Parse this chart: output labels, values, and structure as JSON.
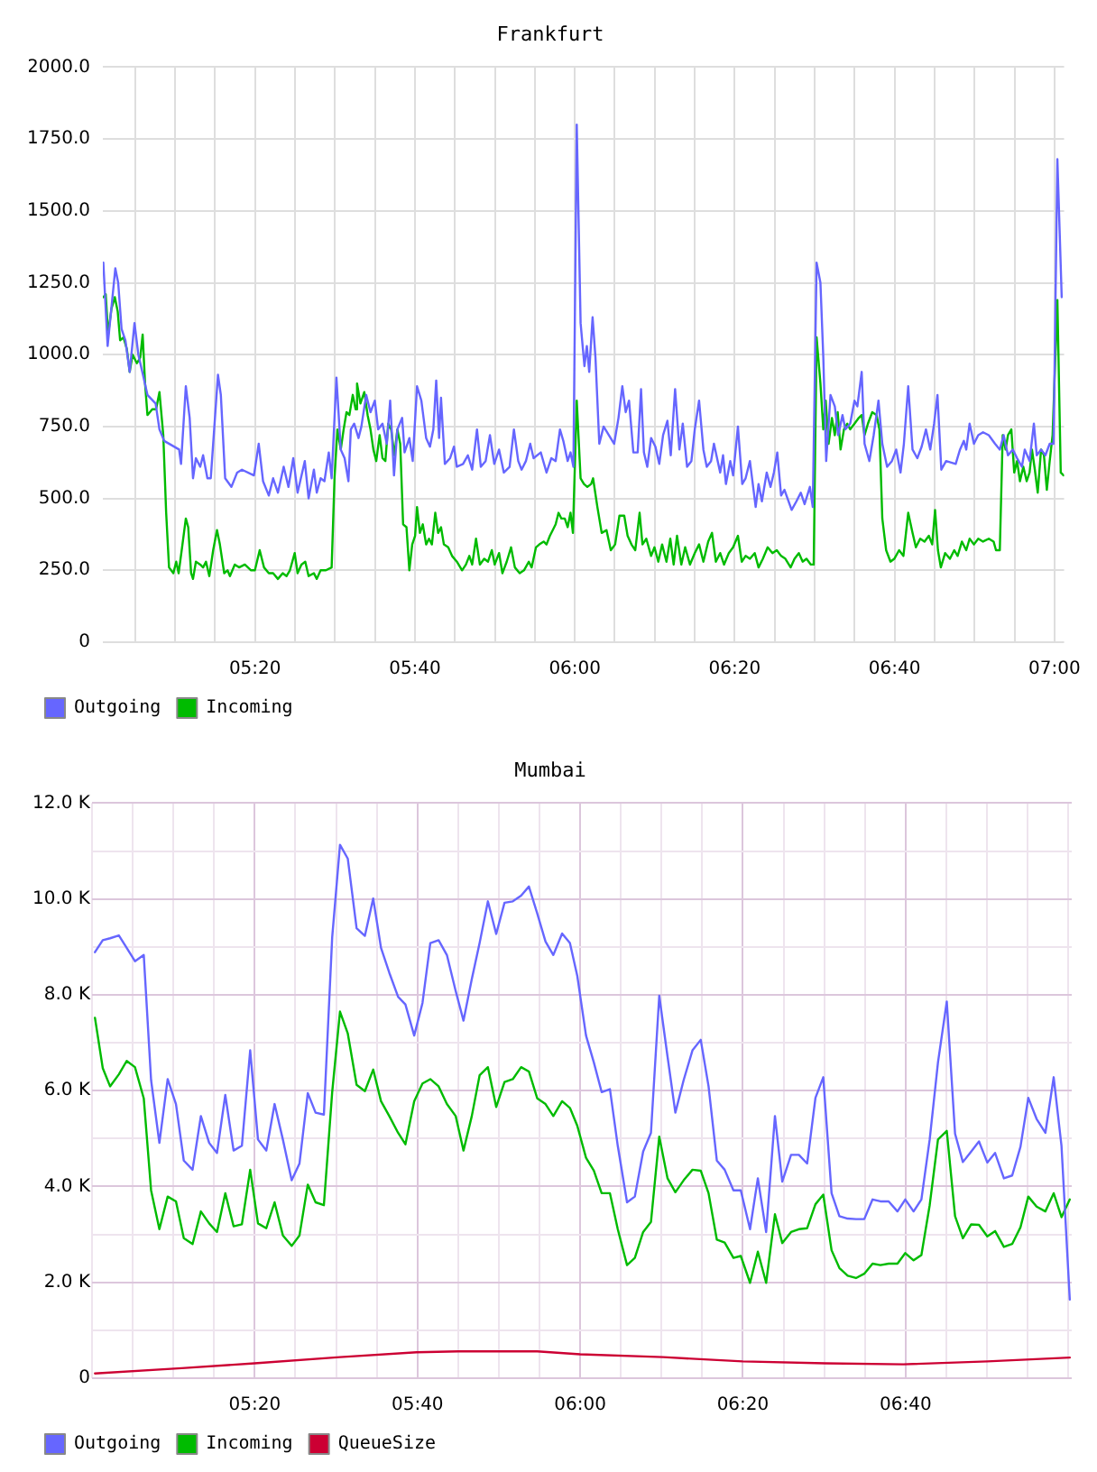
{
  "chart_data": [
    {
      "type": "line",
      "title": "Frankfurt",
      "xlim": [
        5.016,
        7.02
      ],
      "xticks": [
        {
          "value": 5.0833,
          "label": null
        },
        {
          "value": 5.1667,
          "label": null
        },
        {
          "value": 5.25,
          "label": null
        },
        {
          "value": 5.3333,
          "label": "05:20"
        },
        {
          "value": 5.4167,
          "label": null
        },
        {
          "value": 5.5,
          "label": null
        },
        {
          "value": 5.5833,
          "label": null
        },
        {
          "value": 5.6667,
          "label": "05:40"
        },
        {
          "value": 5.75,
          "label": null
        },
        {
          "value": 5.8333,
          "label": null
        },
        {
          "value": 5.9167,
          "label": null
        },
        {
          "value": 6,
          "label": "06:00"
        },
        {
          "value": 6.0833,
          "label": null
        },
        {
          "value": 6.1667,
          "label": null
        },
        {
          "value": 6.25,
          "label": null
        },
        {
          "value": 6.3333,
          "label": "06:20"
        },
        {
          "value": 6.4167,
          "label": null
        },
        {
          "value": 6.5,
          "label": null
        },
        {
          "value": 6.5833,
          "label": null
        },
        {
          "value": 6.6667,
          "label": "06:40"
        },
        {
          "value": 6.75,
          "label": null
        },
        {
          "value": 6.8333,
          "label": null
        },
        {
          "value": 6.9167,
          "label": null
        },
        {
          "value": 7,
          "label": "07:00"
        }
      ],
      "ylim": [
        0,
        2000
      ],
      "yticks": [
        0,
        {
          "value": 250,
          "label": "250.0"
        },
        {
          "value": 500,
          "label": "500.0"
        },
        {
          "value": 750,
          "label": "750.0"
        },
        {
          "value": 1000,
          "label": "1000.0"
        },
        {
          "value": 1250,
          "label": "1250.0"
        },
        {
          "value": 1500,
          "label": "1500.0"
        },
        {
          "value": 1750,
          "label": "1750.0"
        },
        {
          "value": 2000,
          "label": "2000.0"
        }
      ],
      "grid": true,
      "legend": "bottom left",
      "series": [
        {
          "name": "Outgoing",
          "color": "#6666ff",
          "x": [
            5.017,
            5.026,
            5.042,
            5.048,
            5.055,
            5.063,
            5.072,
            5.082,
            5.09,
            5.101,
            5.109,
            5.126,
            5.134,
            5.144,
            5.175,
            5.179,
            5.189,
            5.197,
            5.204,
            5.21,
            5.219,
            5.225,
            5.234,
            5.241,
            5.256,
            5.262,
            5.271,
            5.284,
            5.296,
            5.306,
            5.331,
            5.341,
            5.35,
            5.362,
            5.371,
            5.381,
            5.393,
            5.403,
            5.413,
            5.422,
            5.437,
            5.445,
            5.456,
            5.462,
            5.47,
            5.478,
            5.487,
            5.493,
            5.503,
            5.512,
            5.52,
            5.528,
            5.533,
            5.54,
            5.549,
            5.555,
            5.565,
            5.574,
            5.583,
            5.59,
            5.599,
            5.608,
            5.615,
            5.623,
            5.63,
            5.64,
            5.645,
            5.655,
            5.662,
            5.671,
            5.68,
            5.69,
            5.698,
            5.705,
            5.711,
            5.717,
            5.721,
            5.729,
            5.74,
            5.748,
            5.754,
            5.767,
            5.777,
            5.786,
            5.796,
            5.804,
            5.814,
            5.823,
            5.832,
            5.842,
            5.852,
            5.864,
            5.873,
            5.882,
            5.889,
            5.898,
            5.907,
            5.914,
            5.929,
            5.941,
            5.951,
            5.96,
            5.969,
            5.976,
            5.985,
            5.991,
            5.997,
            6.004,
            6.012,
            6.02,
            6.025,
            6.03,
            6.037,
            6.043,
            6.051,
            6.06,
            6.082,
            6.091,
            6.099,
            6.106,
            6.113,
            6.122,
            6.131,
            6.138,
            6.144,
            6.151,
            6.159,
            6.168,
            6.176,
            6.184,
            6.193,
            6.2,
            6.209,
            6.218,
            6.225,
            6.234,
            6.243,
            6.25,
            6.259,
            6.268,
            6.275,
            6.284,
            6.29,
            6.303,
            6.309,
            6.315,
            6.324,
            6.33,
            6.34,
            6.349,
            6.356,
            6.365,
            6.377,
            6.383,
            6.39,
            6.4,
            6.408,
            6.415,
            6.422,
            6.43,
            6.437,
            6.452,
            6.462,
            6.471,
            6.479,
            6.49,
            6.496,
            6.504,
            6.512,
            6.518,
            6.524,
            6.533,
            6.542,
            6.549,
            6.558,
            6.564,
            6.574,
            6.583,
            6.589,
            6.598,
            6.604,
            6.614,
            6.623,
            6.633,
            6.641,
            6.651,
            6.661,
            6.67,
            6.679,
            6.686,
            6.695,
            6.704,
            6.714,
            6.723,
            6.732,
            6.741,
            6.749,
            6.756,
            6.764,
            6.774,
            6.794,
            6.803,
            6.811,
            6.816,
            6.823,
            6.832,
            6.841,
            6.851,
            6.863,
            6.876,
            6.886,
            6.894,
            6.903,
            6.913,
            6.922,
            6.932,
            6.938,
            6.948,
            6.957,
            6.963,
            6.972,
            6.981,
            6.99,
            6.998,
            7.006,
            7.015
          ],
          "values": [
            1320,
            1030,
            1300,
            1250,
            1090,
            1050,
            940,
            1110,
            1000,
            920,
            860,
            830,
            740,
            700,
            670,
            620,
            890,
            780,
            570,
            640,
            610,
            650,
            570,
            570,
            930,
            860,
            570,
            540,
            590,
            600,
            580,
            690,
            560,
            510,
            570,
            520,
            610,
            540,
            640,
            520,
            630,
            500,
            600,
            520,
            570,
            560,
            660,
            570,
            920,
            670,
            640,
            560,
            740,
            760,
            710,
            750,
            860,
            800,
            840,
            740,
            760,
            690,
            840,
            580,
            740,
            780,
            660,
            710,
            630,
            890,
            840,
            710,
            680,
            740,
            910,
            710,
            850,
            620,
            640,
            680,
            610,
            620,
            650,
            600,
            740,
            610,
            630,
            720,
            620,
            670,
            590,
            610,
            740,
            630,
            600,
            630,
            690,
            640,
            660,
            590,
            640,
            630,
            740,
            700,
            630,
            660,
            610,
            1800,
            1110,
            960,
            1030,
            940,
            1130,
            990,
            690,
            750,
            690,
            780,
            890,
            800,
            840,
            660,
            660,
            880,
            660,
            610,
            710,
            680,
            620,
            720,
            770,
            650,
            880,
            670,
            760,
            610,
            630,
            740,
            840,
            670,
            610,
            630,
            690,
            590,
            650,
            550,
            630,
            580,
            750,
            550,
            570,
            630,
            470,
            550,
            490,
            590,
            540,
            590,
            660,
            510,
            530,
            460,
            490,
            520,
            480,
            540,
            470,
            1320,
            1250,
            990,
            630,
            860,
            820,
            720,
            790,
            740,
            760,
            840,
            820,
            940,
            690,
            630,
            720,
            840,
            690,
            610,
            630,
            670,
            590,
            690,
            890,
            670,
            640,
            680,
            740,
            670,
            760,
            860,
            600,
            630,
            620,
            670,
            700,
            670,
            760,
            690,
            720,
            730,
            720,
            690,
            670,
            720,
            650,
            670,
            640,
            610,
            670,
            630,
            760,
            650,
            670,
            650,
            690,
            690,
            1680,
            1200
          ]
        },
        {
          "name": "Incoming",
          "color": "#00bb00",
          "x": [
            5.017,
            5.022,
            5.027,
            5.034,
            5.041,
            5.047,
            5.052,
            5.059,
            5.066,
            5.072,
            5.078,
            5.087,
            5.094,
            5.099,
            5.104,
            5.109,
            5.119,
            5.127,
            5.134,
            5.142,
            5.148,
            5.154,
            5.163,
            5.169,
            5.174,
            5.182,
            5.189,
            5.194,
            5.2,
            5.204,
            5.21,
            5.219,
            5.225,
            5.231,
            5.238,
            5.246,
            5.254,
            5.26,
            5.269,
            5.276,
            5.281,
            5.291,
            5.3,
            5.312,
            5.325,
            5.333,
            5.343,
            5.352,
            5.362,
            5.371,
            5.381,
            5.391,
            5.399,
            5.406,
            5.416,
            5.422,
            5.43,
            5.438,
            5.445,
            5.456,
            5.462,
            5.47,
            5.481,
            5.493,
            5.499,
            5.505,
            5.512,
            5.518,
            5.524,
            5.53,
            5.537,
            5.543,
            5.546,
            5.553,
            5.561,
            5.568,
            5.574,
            5.58,
            5.586,
            5.593,
            5.599,
            5.605,
            5.611,
            5.617,
            5.624,
            5.63,
            5.636,
            5.642,
            5.649,
            5.655,
            5.661,
            5.667,
            5.671,
            5.677,
            5.683,
            5.69,
            5.696,
            5.702,
            5.709,
            5.715,
            5.721,
            5.727,
            5.736,
            5.744,
            5.754,
            5.765,
            5.773,
            5.78,
            5.786,
            5.794,
            5.802,
            5.811,
            5.819,
            5.827,
            5.833,
            5.842,
            5.849,
            5.858,
            5.867,
            5.875,
            5.885,
            5.894,
            5.904,
            5.91,
            5.919,
            5.926,
            5.935,
            5.941,
            5.948,
            5.954,
            5.96,
            5.966,
            5.972,
            5.979,
            5.985,
            5.991,
            5.996,
            6.004,
            6.012,
            6.019,
            6.026,
            6.034,
            6.038,
            6.047,
            6.056,
            6.066,
            6.075,
            6.084,
            6.093,
            6.103,
            6.11,
            6.118,
            6.126,
            6.135,
            6.141,
            6.149,
            6.159,
            6.166,
            6.174,
            6.182,
            6.191,
            6.199,
            6.206,
            6.213,
            6.222,
            6.23,
            6.24,
            6.25,
            6.259,
            6.268,
            6.278,
            6.286,
            6.294,
            6.303,
            6.311,
            6.321,
            6.33,
            6.34,
            6.348,
            6.356,
            6.365,
            6.375,
            6.383,
            6.392,
            6.402,
            6.412,
            6.421,
            6.43,
            6.439,
            6.45,
            6.458,
            6.467,
            6.475,
            6.483,
            6.492,
            6.498,
            6.504,
            6.512,
            6.518,
            6.523,
            6.529,
            6.536,
            6.542,
            6.548,
            6.554,
            6.561,
            6.568,
            6.574,
            6.583,
            6.592,
            6.598,
            6.604,
            6.611,
            6.62,
            6.629,
            6.635,
            6.641,
            6.649,
            6.658,
            6.666,
            6.676,
            6.685,
            6.695,
            6.704,
            6.711,
            6.72,
            6.729,
            6.738,
            6.745,
            6.751,
            6.757,
            6.763,
            6.772,
            6.782,
            6.791,
            6.798,
            6.807,
            6.816,
            6.823,
            6.832,
            6.841,
            6.851,
            6.863,
            6.873,
            6.878,
            6.886,
            6.892,
            6.898,
            6.903,
            6.91,
            6.916,
            6.922,
            6.928,
            6.935,
            6.942,
            6.948,
            6.953,
            6.959,
            6.965,
            6.972,
            6.978,
            6.984,
            6.99,
            6.996,
            7.006,
            7.013,
            7.019
          ],
          "values": [
            1200,
            1210,
            1070,
            1160,
            1200,
            1150,
            1050,
            1060,
            1020,
            940,
            1000,
            970,
            990,
            1070,
            900,
            790,
            810,
            810,
            870,
            720,
            450,
            260,
            240,
            280,
            240,
            340,
            430,
            400,
            240,
            220,
            280,
            270,
            260,
            280,
            230,
            320,
            390,
            340,
            240,
            250,
            230,
            270,
            260,
            270,
            250,
            250,
            320,
            260,
            240,
            240,
            220,
            240,
            230,
            250,
            310,
            240,
            270,
            280,
            230,
            240,
            220,
            250,
            250,
            260,
            570,
            740,
            670,
            740,
            800,
            790,
            860,
            810,
            900,
            830,
            870,
            790,
            740,
            670,
            630,
            720,
            640,
            630,
            760,
            740,
            650,
            740,
            690,
            410,
            400,
            250,
            340,
            370,
            470,
            380,
            410,
            340,
            360,
            340,
            450,
            380,
            400,
            340,
            330,
            300,
            280,
            250,
            270,
            300,
            270,
            360,
            270,
            290,
            280,
            320,
            270,
            310,
            240,
            280,
            330,
            260,
            240,
            250,
            280,
            260,
            330,
            340,
            350,
            340,
            370,
            390,
            410,
            450,
            430,
            430,
            400,
            450,
            380,
            840,
            570,
            550,
            540,
            550,
            570,
            470,
            380,
            390,
            320,
            340,
            440,
            440,
            370,
            340,
            320,
            450,
            340,
            360,
            300,
            330,
            280,
            340,
            280,
            360,
            270,
            370,
            270,
            330,
            270,
            310,
            340,
            280,
            350,
            380,
            280,
            310,
            270,
            310,
            330,
            370,
            280,
            300,
            290,
            310,
            260,
            290,
            330,
            310,
            320,
            300,
            290,
            260,
            290,
            310,
            280,
            290,
            270,
            270,
            1060,
            900,
            740,
            840,
            690,
            780,
            720,
            800,
            670,
            740,
            760,
            740,
            760,
            780,
            790,
            720,
            760,
            800,
            790,
            740,
            430,
            320,
            280,
            290,
            320,
            300,
            450,
            380,
            330,
            360,
            350,
            370,
            340,
            460,
            320,
            260,
            310,
            290,
            320,
            300,
            350,
            320,
            360,
            340,
            360,
            350,
            360,
            350,
            320,
            320,
            720,
            670,
            720,
            740,
            590,
            630,
            560,
            610,
            560,
            590,
            670,
            600,
            520,
            670,
            650,
            530,
            630,
            720,
            1190,
            590,
            580
          ]
        }
      ]
    },
    {
      "type": "line",
      "title": "Mumbai",
      "x": [
        5.006,
        5.022,
        5.037,
        5.055,
        5.071,
        5.088,
        5.106,
        5.121,
        5.138,
        5.155,
        5.172,
        5.188,
        5.206,
        5.223,
        5.24,
        5.256,
        5.273,
        5.29,
        5.307,
        5.324,
        5.34,
        5.357,
        5.374,
        5.391,
        5.409,
        5.425,
        5.442,
        5.458,
        5.475,
        5.492,
        5.508,
        5.524,
        5.542,
        5.559,
        5.576,
        5.592,
        5.609,
        5.627,
        5.642,
        5.66,
        5.677,
        5.693,
        5.71,
        5.727,
        5.745,
        5.761,
        5.778,
        5.794,
        5.811,
        5.828,
        5.845,
        5.862,
        5.879,
        5.895,
        5.912,
        5.929,
        5.945,
        5.963,
        5.979,
        5.994,
        6.012,
        6.028,
        6.044,
        6.061,
        6.077,
        6.096,
        6.112,
        6.129,
        6.145,
        6.162,
        6.179,
        6.195,
        6.212,
        6.23,
        6.247,
        6.263,
        6.28,
        6.296,
        6.314,
        6.329,
        6.348,
        6.364,
        6.381,
        6.399,
        6.414,
        6.432,
        6.448,
        6.465,
        6.482,
        6.498,
        6.515,
        6.531,
        6.548,
        6.565,
        6.582,
        6.599,
        6.615,
        6.632,
        6.65,
        6.666,
        6.683,
        6.699,
        6.716,
        6.733,
        6.751,
        6.768,
        6.784,
        6.801,
        6.817,
        6.834,
        6.85,
        6.868,
        6.885,
        6.902,
        6.918,
        6.935,
        6.953,
        6.97,
        6.986,
        7.003
      ],
      "xlim": [
        5,
        7.007
      ],
      "xticks": [
        {
          "value": 5,
          "label": null
        },
        {
          "value": 5.0833,
          "label": null
        },
        {
          "value": 5.1667,
          "label": null
        },
        {
          "value": 5.25,
          "label": null
        },
        {
          "value": 5.3333,
          "label": "05:20"
        },
        {
          "value": 5.4167,
          "label": null
        },
        {
          "value": 5.5,
          "label": null
        },
        {
          "value": 5.5833,
          "label": null
        },
        {
          "value": 5.6667,
          "label": "05:40"
        },
        {
          "value": 5.75,
          "label": null
        },
        {
          "value": 5.8333,
          "label": null
        },
        {
          "value": 5.9167,
          "label": null
        },
        {
          "value": 6,
          "label": "06:00"
        },
        {
          "value": 6.0833,
          "label": null
        },
        {
          "value": 6.1667,
          "label": null
        },
        {
          "value": 6.25,
          "label": null
        },
        {
          "value": 6.3333,
          "label": "06:20"
        },
        {
          "value": 6.4167,
          "label": null
        },
        {
          "value": 6.5,
          "label": null
        },
        {
          "value": 6.5833,
          "label": null
        },
        {
          "value": 6.6667,
          "label": "06:40"
        },
        {
          "value": 6.75,
          "label": null
        },
        {
          "value": 6.8333,
          "label": null
        },
        {
          "value": 6.9167,
          "label": null
        },
        {
          "value": 7,
          "label": null
        }
      ],
      "ylim": [
        0,
        12000
      ],
      "yticks": [
        0,
        {
          "value": 1000,
          "label": null
        },
        {
          "value": 2000,
          "label": "2.0 K"
        },
        {
          "value": 3000,
          "label": null
        },
        {
          "value": 4000,
          "label": "4.0 K"
        },
        {
          "value": 5000,
          "label": null
        },
        {
          "value": 6000,
          "label": "6.0 K"
        },
        {
          "value": 7000,
          "label": null
        },
        {
          "value": 8000,
          "label": "8.0 K"
        },
        {
          "value": 9000,
          "label": null
        },
        {
          "value": 10000,
          "label": "10.0 K"
        },
        {
          "value": 11000,
          "label": null
        },
        {
          "value": 12000,
          "label": "12.0 K"
        }
      ],
      "grid": true,
      "legend": "bottom left",
      "series": [
        {
          "name": "Outgoing",
          "color": "#6666ff",
          "values": [
            8890,
            9140,
            9180,
            9240,
            8980,
            8700,
            8830,
            6220,
            4910,
            6240,
            5720,
            4540,
            4350,
            5470,
            4910,
            4700,
            5910,
            4750,
            4850,
            6840,
            4980,
            4750,
            5720,
            4980,
            4130,
            4480,
            5950,
            5540,
            5500,
            9200,
            11130,
            10840,
            9390,
            9230,
            10010,
            8980,
            8460,
            7960,
            7800,
            7150,
            7830,
            9080,
            9140,
            8830,
            8080,
            7460,
            8330,
            9080,
            9950,
            9270,
            9920,
            9950,
            10070,
            10260,
            9700,
            9110,
            8830,
            9280,
            9080,
            8400,
            7150,
            6590,
            5970,
            6030,
            4850,
            3670,
            3790,
            4730,
            5120,
            7980,
            6710,
            5540,
            6220,
            6840,
            7060,
            6090,
            4540,
            4350,
            3920,
            3920,
            3110,
            4170,
            3050,
            5470,
            4100,
            4660,
            4660,
            4480,
            5850,
            6280,
            3860,
            3380,
            3330,
            3320,
            3320,
            3730,
            3690,
            3690,
            3480,
            3730,
            3480,
            3730,
            4980,
            6590,
            7860,
            5100,
            4510,
            4730,
            4940,
            4500,
            4700,
            4170,
            4230,
            4830,
            5850,
            5410,
            5120,
            6280,
            4850,
            1640
          ]
        },
        {
          "name": "Incoming",
          "color": "#00bb00",
          "values": [
            7520,
            6470,
            6090,
            6340,
            6620,
            6490,
            5840,
            3920,
            3110,
            3790,
            3690,
            2920,
            2800,
            3480,
            3230,
            3050,
            3860,
            3170,
            3210,
            4350,
            3230,
            3130,
            3670,
            2980,
            2760,
            2980,
            4040,
            3670,
            3610,
            5970,
            7650,
            7190,
            6120,
            5990,
            6440,
            5780,
            5470,
            5120,
            4880,
            5780,
            6150,
            6240,
            6090,
            5720,
            5470,
            4750,
            5470,
            6320,
            6490,
            5660,
            6180,
            6240,
            6490,
            6400,
            5840,
            5720,
            5470,
            5780,
            5640,
            5270,
            4600,
            4330,
            3860,
            3860,
            3110,
            2360,
            2510,
            3050,
            3260,
            5040,
            4170,
            3880,
            4130,
            4350,
            4330,
            3860,
            2890,
            2830,
            2510,
            2550,
            1990,
            2640,
            1990,
            3420,
            2820,
            3050,
            3110,
            3130,
            3630,
            3830,
            2670,
            2300,
            2140,
            2090,
            2180,
            2390,
            2360,
            2390,
            2390,
            2610,
            2460,
            2570,
            3610,
            4980,
            5160,
            3380,
            2920,
            3210,
            3200,
            2960,
            3070,
            2740,
            2800,
            3150,
            3790,
            3580,
            3480,
            3860,
            3360,
            3730
          ]
        },
        {
          "name": "QueueSize",
          "color": "#cc0033",
          "x": [
            5.006,
            5.184,
            5.333,
            5.508,
            5.665,
            5.75,
            5.912,
            6.0,
            6.17,
            6.333,
            6.502,
            6.662,
            6.834,
            7.003
          ],
          "values": [
            100,
            210,
            310,
            440,
            540,
            560,
            560,
            500,
            440,
            350,
            310,
            290,
            350,
            430
          ]
        }
      ]
    }
  ]
}
